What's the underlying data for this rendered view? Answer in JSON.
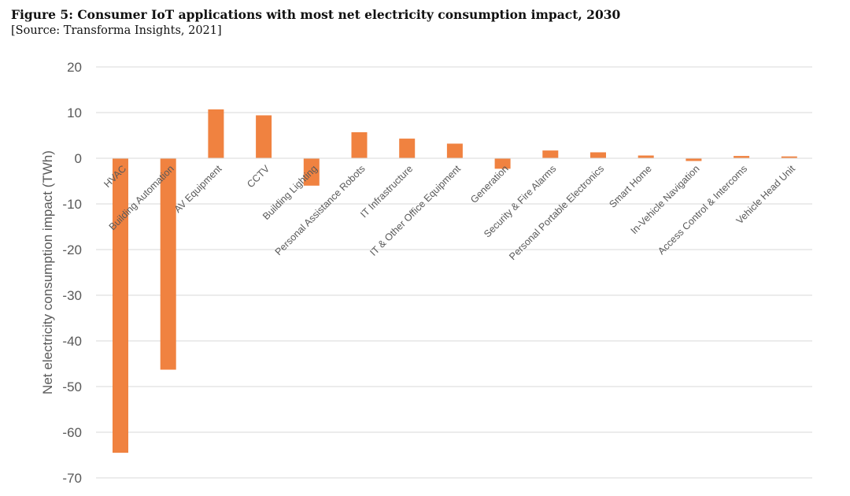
{
  "figure": {
    "title": "Figure 5: Consumer IoT applications with most net electricity consumption impact, 2030",
    "source": "[Source: Transforma Insights, 2021]"
  },
  "chart_data": {
    "type": "bar",
    "title": "Figure 5: Consumer IoT applications with most net electricity consumption impact, 2030",
    "xlabel": "",
    "ylabel": "Net electricity consumption impact (TWh)",
    "ylim": [
      -70,
      20
    ],
    "yticks": [
      "20",
      "10",
      "0",
      "-10",
      "-20",
      "-30",
      "-40",
      "-50",
      "-60",
      "-70"
    ],
    "grid": true,
    "legend": "none",
    "bar_color": "#f08240",
    "categories": [
      "HVAC",
      "Building Automation",
      "AV Equipment",
      "CCTV",
      "Building Lighting",
      "Personal Assistance Robots",
      "IT Infrastructure",
      "IT & Other Office Equipment",
      "Generation",
      "Security & Fire Alarms",
      "Personal Portable Electronics",
      "Smart Home",
      "In-Vehicle Navigation",
      "Access Control & Intercoms",
      "Vehicle Head Unit"
    ],
    "values": [
      -64.5,
      -46.3,
      10.7,
      9.4,
      -6.0,
      5.7,
      4.3,
      3.2,
      -2.3,
      1.7,
      1.3,
      0.6,
      -0.6,
      0.5,
      0.4
    ]
  }
}
